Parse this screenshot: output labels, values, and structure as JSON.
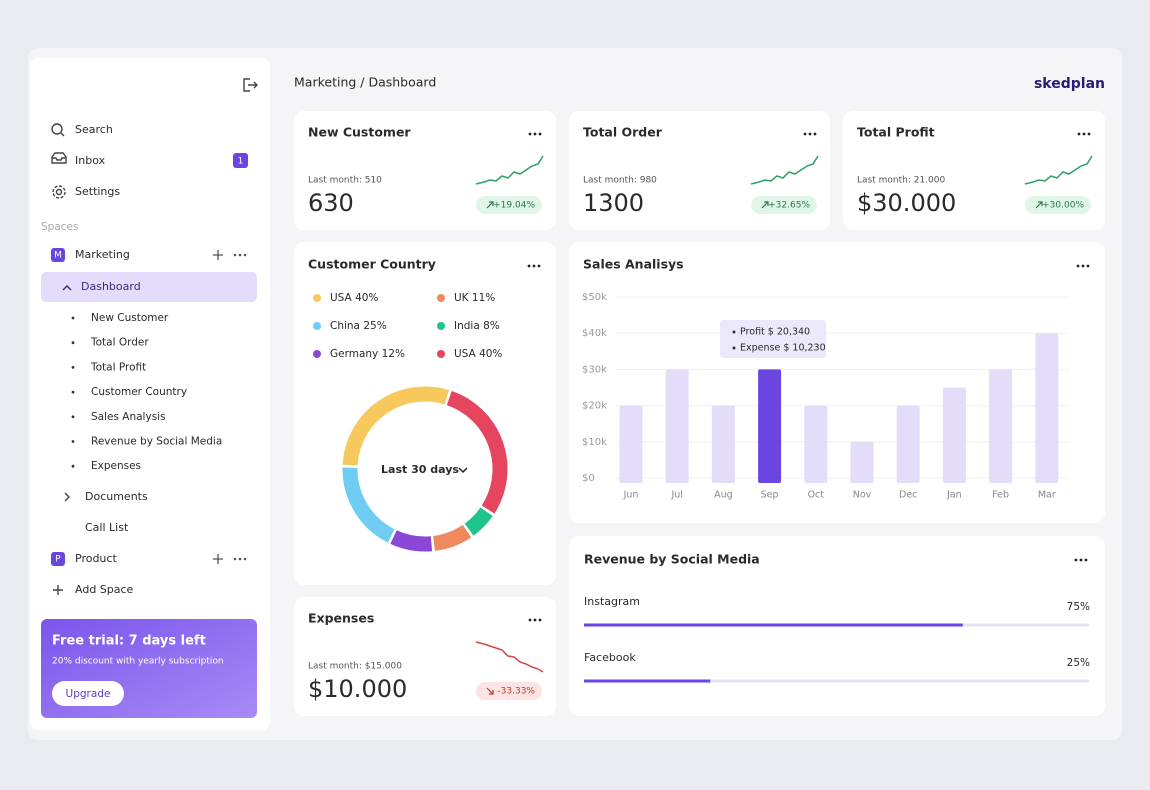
{
  "header": {
    "breadcrumb": "Marketing / Dashboard",
    "brand": "skedplan"
  },
  "sidebar": {
    "nav": [
      "Search",
      "Inbox",
      "Settings"
    ],
    "inbox_badge": "1",
    "spaces_heading": "Spaces",
    "marketing": {
      "initial": "M",
      "name": "Marketing",
      "dashboard": "Dashboard",
      "pages": [
        "New Customer",
        "Total Order",
        "Total Profit",
        "Customer Country",
        "Sales Analysis",
        "Revenue by Social Media",
        "Expenses"
      ],
      "documents": "Documents",
      "call_list": "Call List"
    },
    "product": {
      "initial": "P",
      "name": "Product"
    },
    "add_space": "Add Space",
    "trial": {
      "title": "Free trial: 7 days left",
      "subtitle": "20% discount with yearly subscription",
      "button": "Upgrade"
    }
  },
  "kpis": [
    {
      "title": "New Customer",
      "last_month": "Last month: 510",
      "value": "630",
      "change": "+19.04%",
      "trend": "up"
    },
    {
      "title": "Total Order",
      "last_month": "Last month: 980",
      "value": "1300",
      "change": "+32.65%",
      "trend": "up"
    },
    {
      "title": "Total Profit",
      "last_month": "Last month: 21.000",
      "value": "$30.000",
      "change": "+30.00%",
      "trend": "up"
    },
    {
      "title": "Expenses",
      "last_month": "Last month: $15.000",
      "value": "$10.000",
      "change": "-33.33%",
      "trend": "down"
    }
  ],
  "customer_country": {
    "type": "pie",
    "title": "Customer Country",
    "values": [
      40,
      11,
      25,
      8,
      12,
      40
    ],
    "value_labels": [
      "USA 40%",
      "UK 11%",
      "China 25%",
      "India 8%",
      "Germany 12%",
      "USA 40%"
    ],
    "colors": [
      "#f7c95c",
      "#ee8a5e",
      "#6fcdf4",
      "#20c48f",
      "#8b47d6",
      "#e5455f"
    ],
    "center_label": "Last 30 days"
  },
  "sales": {
    "type": "bar",
    "title": "Sales Analisys",
    "categories": [
      "Jun",
      "Jul",
      "Aug",
      "Sep",
      "Oct",
      "Nov",
      "Dec",
      "Jan",
      "Feb",
      "Mar"
    ],
    "values": [
      20000,
      30000,
      20000,
      30000,
      20000,
      10000,
      20000,
      25000,
      30000,
      40000
    ],
    "ylim": [
      0,
      50000
    ],
    "yticks": [
      {
        "value": 0,
        "label": "$0"
      },
      {
        "value": 10000,
        "label": "$10k"
      },
      {
        "value": 20000,
        "label": "$20k"
      },
      {
        "value": 30000,
        "label": "$30k"
      },
      {
        "value": 40000,
        "label": "$40k"
      },
      {
        "value": 50000,
        "label": "$50k"
      }
    ],
    "grid": true,
    "color": "#e3ddfa",
    "highlight_index": 3,
    "highlight_color": "#6b45df",
    "tooltip": [
      "Profit  $ 20,340",
      "Expense  $ 10,230"
    ]
  },
  "social": {
    "type": "progress",
    "title": "Revenue by Social Media",
    "categories": [
      "Instagram",
      "Facebook"
    ],
    "values": [
      75,
      25
    ],
    "value_labels": [
      "75%",
      "25%"
    ],
    "xlim": [
      0,
      100
    ],
    "color": "#6b45df"
  }
}
